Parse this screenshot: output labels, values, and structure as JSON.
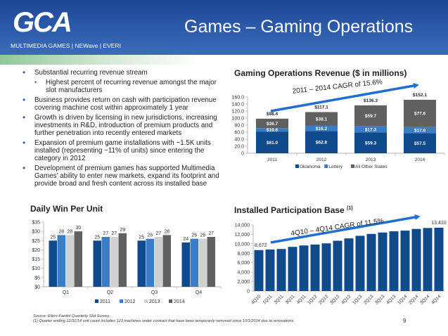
{
  "header": {
    "title": "Games – Gaming Operations",
    "logo_text": "GCA",
    "logo_subtitle": "MULTIMEDIA GAMES | NEWave | EVERI"
  },
  "bullets": [
    {
      "text": "Substantial recurring revenue stream",
      "level": 1
    },
    {
      "text": "Highest percent of recurring revenue amongst the major slot manufacturers",
      "level": 2
    },
    {
      "text": "Business provides return on cash with participation revenue covering machine cost within approximately 1 year",
      "level": 1
    },
    {
      "text": "Growth is driven by licensing in new jurisdictions, increasing investments in R&D, introduction of premium products and further penetration into recently entered markets",
      "level": 1
    },
    {
      "text": "Expansion of premium game installations with ~1.5K units installed (representing ~11% of units) since entering the category in 2012",
      "level": 1
    },
    {
      "text": "Development of premium games has supported Multimedia Games' ability to enter new markets, expand its footprint and provide broad and fresh content across its installed base",
      "level": 1
    }
  ],
  "footnotes": {
    "source": "Source: Eilers-Fantini Quarterly Slot Survey.",
    "note": "(1)     Quarter ending 12/31/14 unit count includes 123 machines under contract that have been temporarily removed since 10/1/2014 due to renovations.",
    "page": "9"
  },
  "colors": {
    "dark_blue": "#0f4a8c",
    "mid_blue": "#3a7cc8",
    "light_gray": "#d0d0d0",
    "dark_gray": "#606060",
    "arrow": "#1e6fd0"
  },
  "chart_data": [
    {
      "type": "bar",
      "stacked": true,
      "title": "Gaming Operations Revenue ($ in millions)",
      "categories": [
        "2011",
        "2012",
        "2013",
        "2014"
      ],
      "series": [
        {
          "name": "Oklahoma",
          "values": [
            61.0,
            62.8,
            59.3,
            57.5
          ],
          "labels": [
            "$61.0",
            "$62.8",
            "$59.3",
            "$57.5"
          ]
        },
        {
          "name": "Lottery",
          "values": [
            10.6,
            16.2,
            17.3,
            17.0
          ],
          "labels": [
            "$10.6",
            "$16.2",
            "$17.3",
            "$17.0"
          ]
        },
        {
          "name": "All Other States",
          "values": [
            26.7,
            38.1,
            59.7,
            77.6
          ],
          "labels": [
            "$26.7",
            "$38.1",
            "$59.7",
            "$77.6"
          ]
        }
      ],
      "totals": [
        "$98.4",
        "$117.1",
        "$136.3",
        "$152.1"
      ],
      "ylim": [
        0,
        160
      ],
      "yticks": [
        "0",
        "20.0",
        "40.0",
        "60.0",
        "80.0",
        "100.0",
        "120.0",
        "140.0",
        "160.0"
      ],
      "annotation": "2011 – 2014 CAGR of 15.6%",
      "legend": "bottom"
    },
    {
      "type": "bar",
      "title": "Daily Win Per Unit",
      "categories": [
        "Q1",
        "Q2",
        "Q3",
        "Q4"
      ],
      "series": [
        {
          "name": "2011",
          "values": [
            25,
            25,
            25,
            24
          ]
        },
        {
          "name": "2012",
          "values": [
            28,
            27,
            26,
            26
          ]
        },
        {
          "name": "2013",
          "values": [
            28,
            27,
            27,
            26
          ]
        },
        {
          "name": "2014",
          "values": [
            30,
            29,
            28,
            27
          ]
        }
      ],
      "ylim": [
        0,
        35
      ],
      "yticks": [
        "$0",
        "$5",
        "$10",
        "$15",
        "$20",
        "$25",
        "$30",
        "$35"
      ],
      "legend": "bottom"
    },
    {
      "type": "bar",
      "title": "Installed Participation Base",
      "title_sup": "(1)",
      "categories": [
        "4Q10",
        "1Q11",
        "2Q11",
        "3Q11",
        "4Q11",
        "1Q12",
        "2Q12",
        "3Q12",
        "4Q12",
        "1Q13",
        "2Q13",
        "3Q13",
        "4Q13",
        "1Q14",
        "2Q14",
        "3Q14",
        "4Q14"
      ],
      "values": [
        8672,
        8800,
        8900,
        9350,
        9650,
        9850,
        10100,
        10650,
        11150,
        11700,
        12100,
        12400,
        12650,
        12800,
        13150,
        13350,
        13410
      ],
      "data_labels": {
        "first": "8,672",
        "last": "13,410"
      },
      "ylim": [
        0,
        14000
      ],
      "yticks": [
        "0",
        "2,000",
        "4,000",
        "6,000",
        "8,000",
        "10,000",
        "12,000",
        "14,000"
      ],
      "annotation": "4Q10 – 4Q14 CAGR of 11.5%"
    }
  ]
}
